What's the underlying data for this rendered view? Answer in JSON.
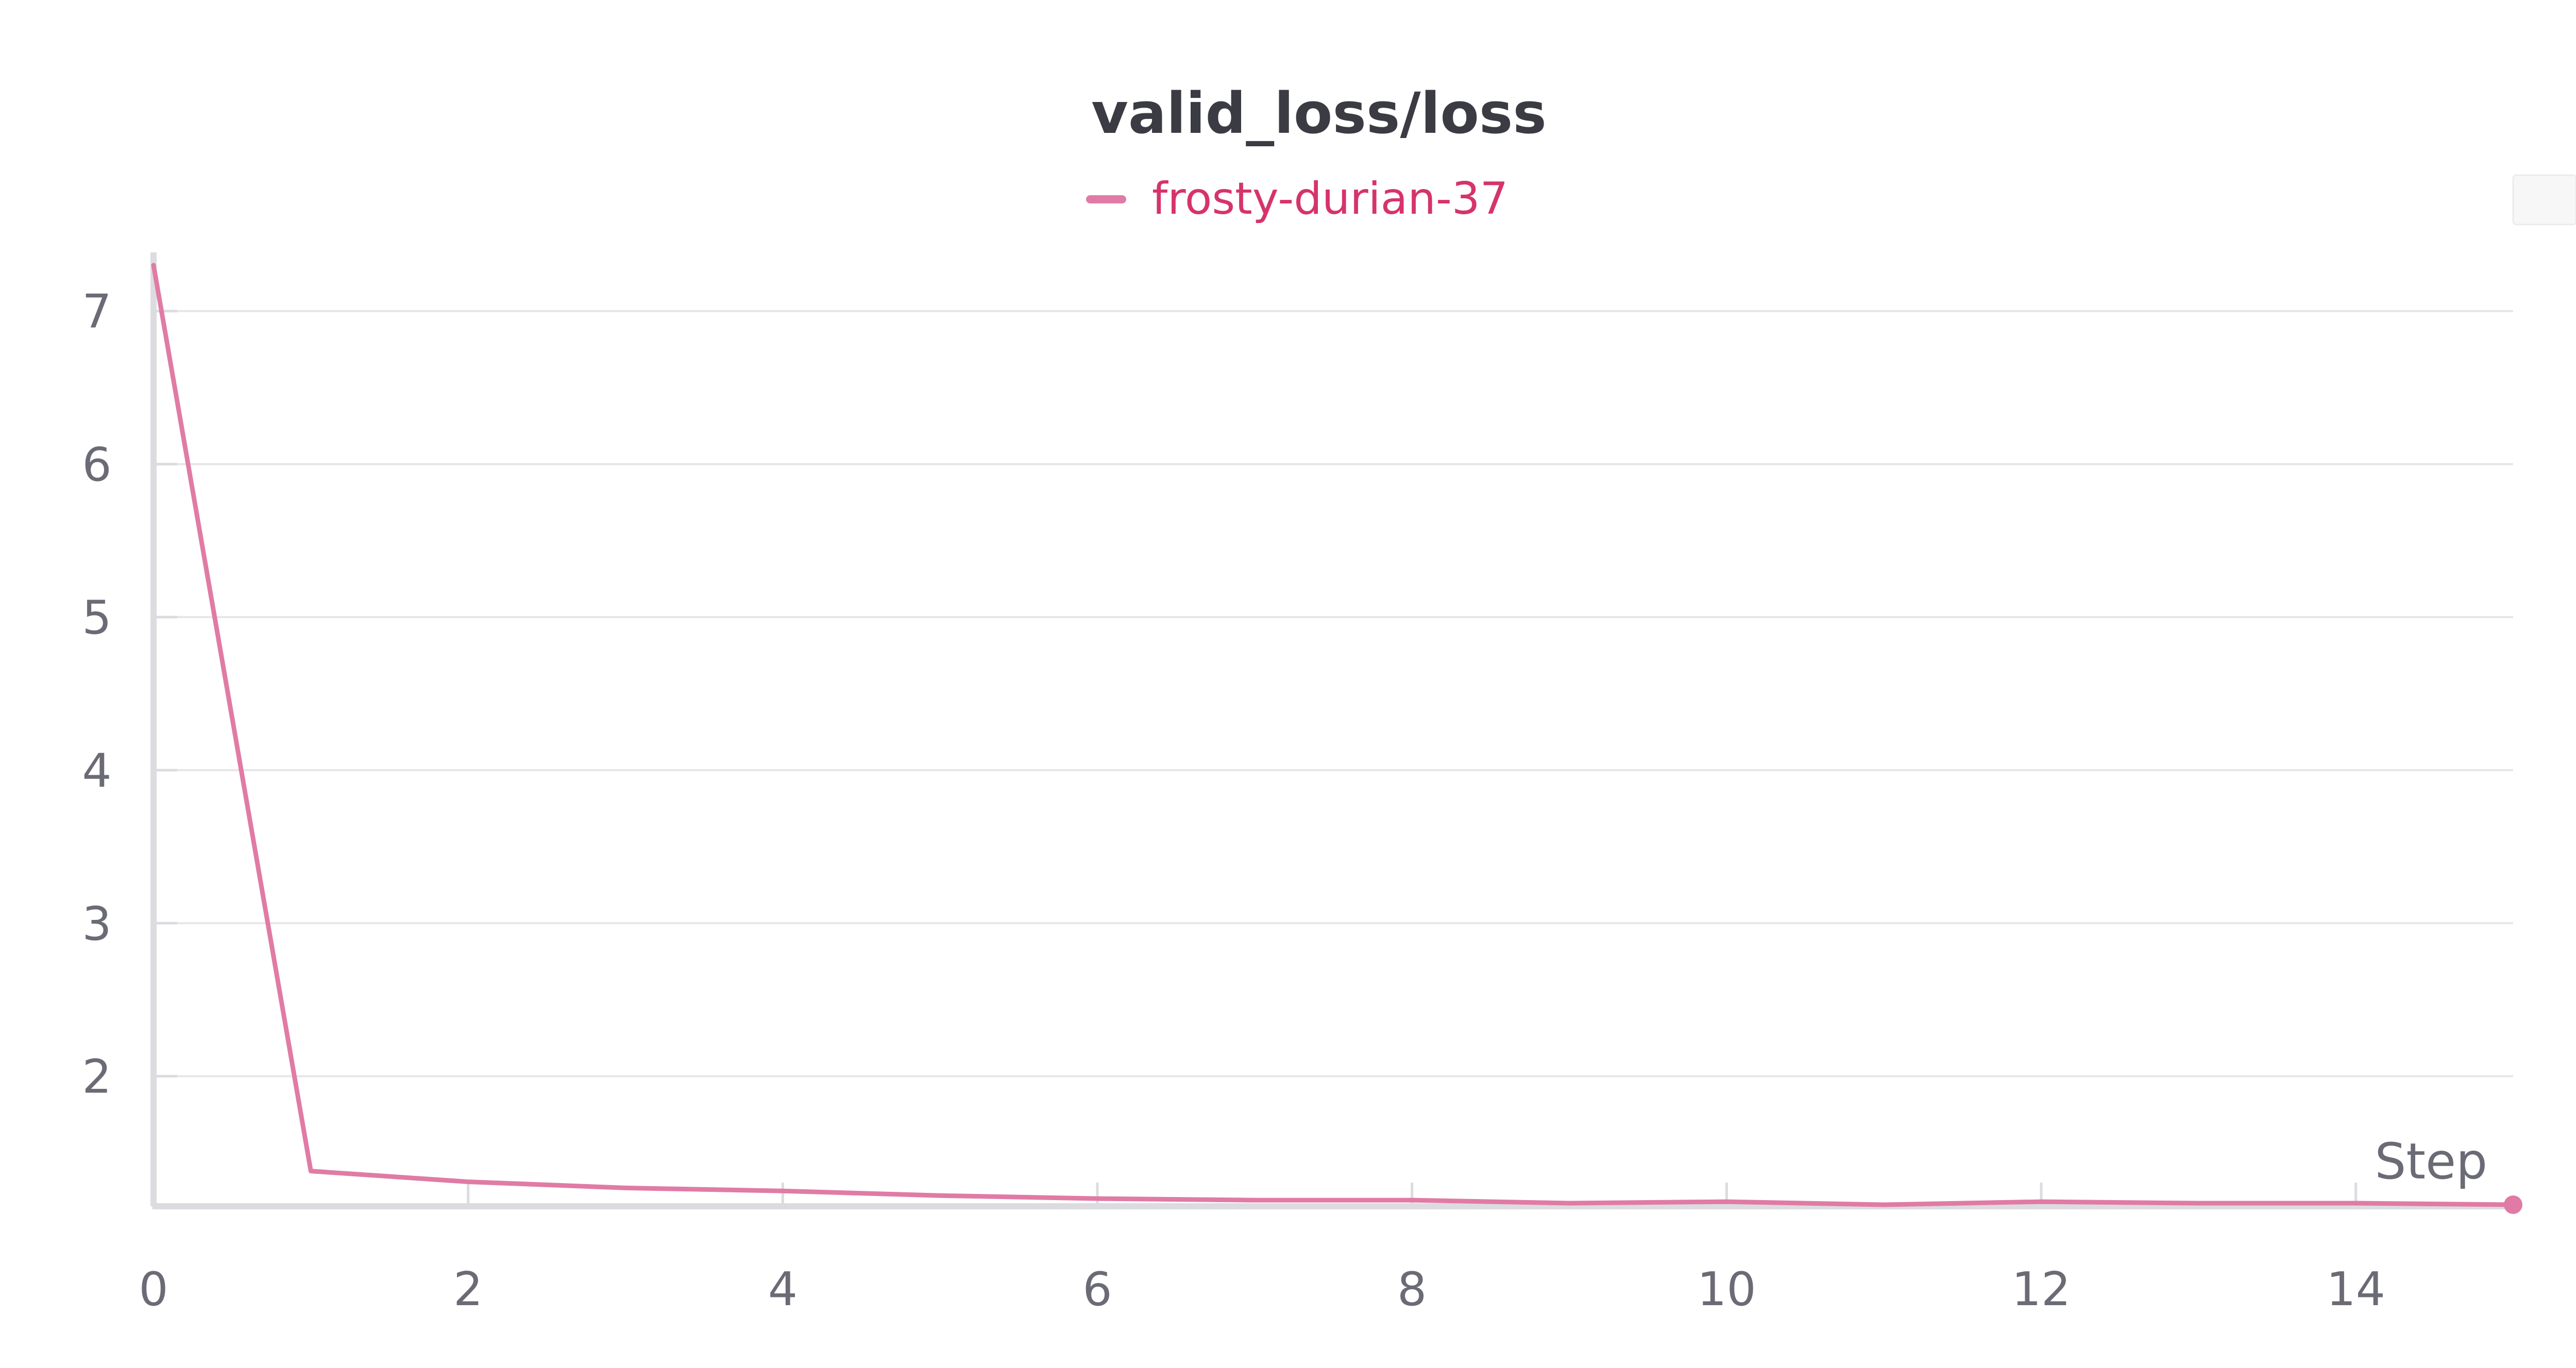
{
  "chart_data": {
    "type": "line",
    "title": "valid_loss/loss",
    "xlabel": "Step",
    "ylabel": "",
    "xlim": [
      0,
      15
    ],
    "ylim": [
      1.15,
      7.35
    ],
    "xticks": [
      0,
      2,
      4,
      6,
      8,
      10,
      12,
      14
    ],
    "yticks": [
      2,
      3,
      4,
      5,
      6,
      7
    ],
    "grid": true,
    "legend_position": "top-center",
    "series": [
      {
        "name": "frosty-durian-37",
        "color": "#e07ba5",
        "x": [
          0,
          1,
          2,
          3,
          4,
          5,
          6,
          7,
          8,
          9,
          10,
          11,
          12,
          13,
          14,
          15
        ],
        "y": [
          7.3,
          1.38,
          1.31,
          1.27,
          1.25,
          1.22,
          1.2,
          1.19,
          1.19,
          1.17,
          1.18,
          1.16,
          1.18,
          1.17,
          1.17,
          1.16
        ]
      }
    ]
  },
  "colors": {
    "grid": "#e6e6ea",
    "axis": "#dcdce0",
    "tick_text": "#6b6b76",
    "title_text": "#3b3b43",
    "legend_text": "#d6336c"
  }
}
